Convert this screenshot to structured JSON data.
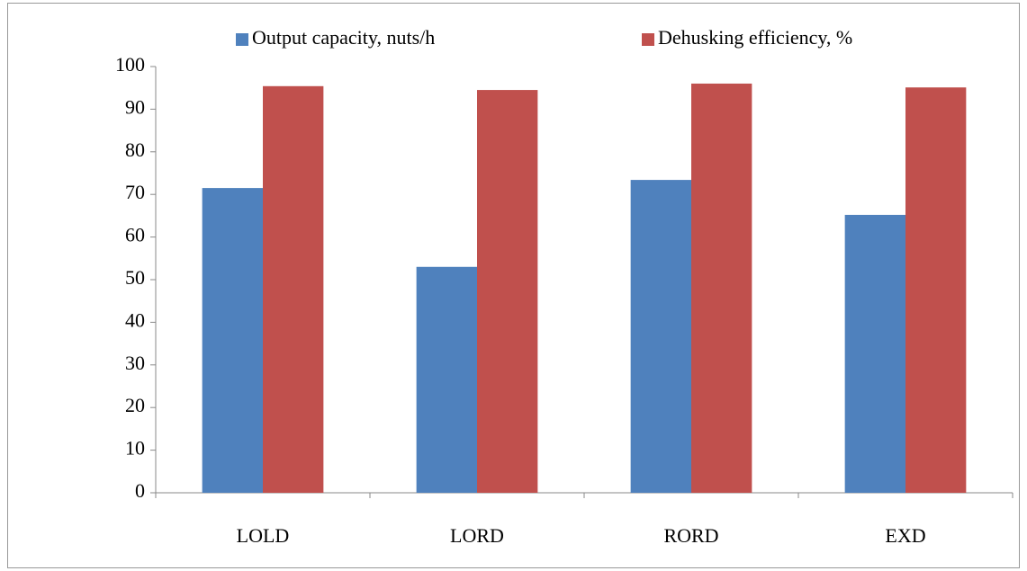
{
  "chart_data": {
    "type": "bar",
    "categories": [
      "LOLD",
      "LORD",
      "RORD",
      "EXD"
    ],
    "series": [
      {
        "name": "Output capacity, nuts/h",
        "color": "#4f81bd",
        "values": [
          71.5,
          53,
          73.4,
          65.2
        ]
      },
      {
        "name": "Dehusking efficiency, %",
        "color": "#c0504d",
        "values": [
          95.4,
          94.5,
          96,
          95.1
        ]
      }
    ],
    "ylim": [
      0,
      100
    ],
    "yticks": [
      0,
      10,
      20,
      30,
      40,
      50,
      60,
      70,
      80,
      90,
      100
    ],
    "grid": false,
    "legend": "top"
  }
}
